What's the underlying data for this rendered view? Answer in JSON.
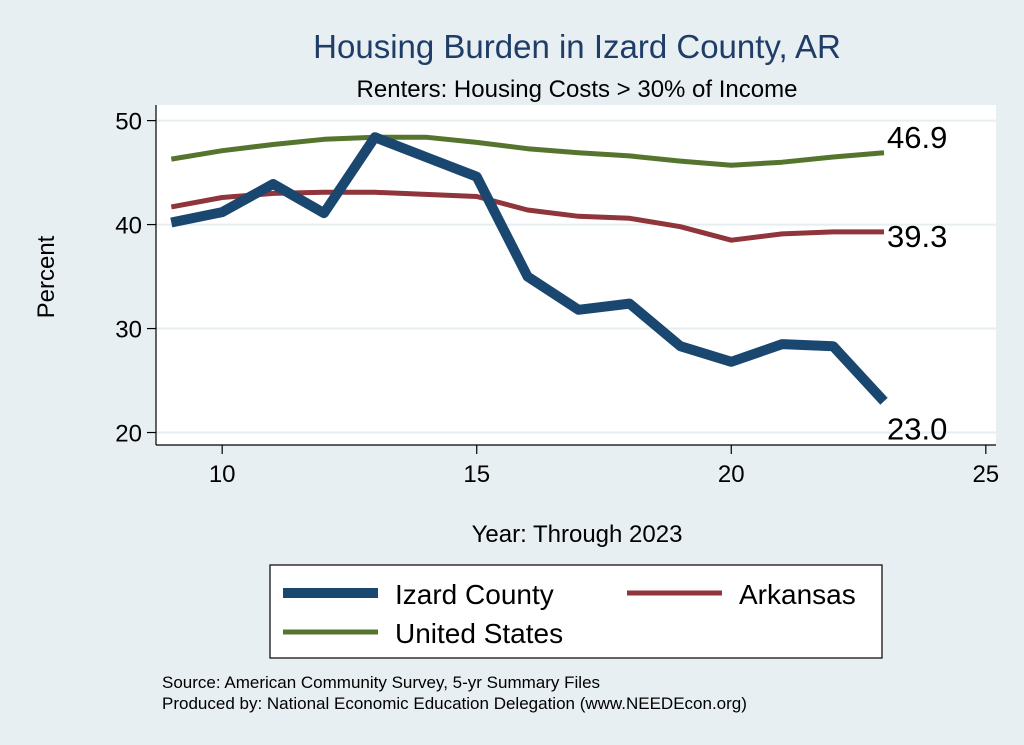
{
  "chart_data": {
    "type": "line",
    "title": "Housing Burden in Izard County, AR",
    "subtitle": "Renters: Housing Costs > 30% of Income",
    "xlabel": "Year: Through 2023",
    "ylabel": "Percent",
    "xlim": [
      8.7,
      25.2
    ],
    "ylim": [
      18.8,
      51.5
    ],
    "x_ticks": [
      10,
      15,
      20,
      25
    ],
    "y_ticks": [
      20,
      30,
      40,
      50
    ],
    "x": [
      9,
      10,
      11,
      12,
      13,
      14,
      15,
      16,
      17,
      18,
      19,
      20,
      21,
      22,
      23
    ],
    "series": [
      {
        "name": "Izard County",
        "color": "#1a476f",
        "values": [
          40.2,
          41.2,
          43.9,
          41.1,
          48.4,
          46.5,
          44.6,
          35.0,
          31.8,
          32.4,
          28.3,
          26.8,
          28.5,
          28.3,
          23.0
        ],
        "end_label": "23.0"
      },
      {
        "name": "Arkansas",
        "color": "#90353b",
        "values": [
          41.7,
          42.6,
          43.0,
          43.1,
          43.1,
          42.9,
          42.7,
          41.4,
          40.8,
          40.6,
          39.8,
          38.5,
          39.1,
          39.3,
          39.3
        ],
        "end_label": "39.3"
      },
      {
        "name": "United States",
        "color": "#55752f",
        "values": [
          46.3,
          47.1,
          47.7,
          48.2,
          48.4,
          48.4,
          47.9,
          47.3,
          46.9,
          46.6,
          46.1,
          45.7,
          46.0,
          46.5,
          46.9
        ],
        "end_label": "46.9"
      }
    ],
    "legend": [
      {
        "label": "Izard County",
        "color": "#1a476f"
      },
      {
        "label": "Arkansas",
        "color": "#90353b"
      },
      {
        "label": "United States",
        "color": "#55752f"
      }
    ],
    "notes": [
      "Source: American Community Survey, 5-yr Summary Files",
      "Produced by: National Economic Education Delegation (www.NEEDEcon.org)"
    ]
  }
}
